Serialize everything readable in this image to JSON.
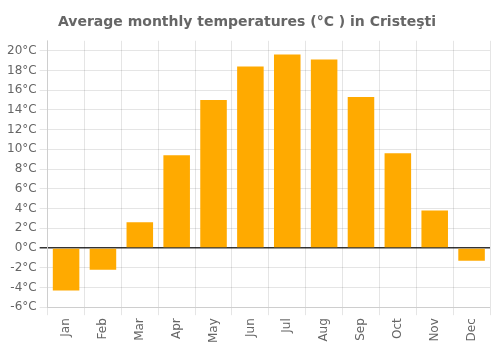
{
  "chart_data": {
    "type": "bar",
    "title": "Average monthly temperatures (°C ) in Cristeşti",
    "categories": [
      "Jan",
      "Feb",
      "Mar",
      "Apr",
      "May",
      "Jun",
      "Jul",
      "Aug",
      "Sep",
      "Oct",
      "Nov",
      "Dec"
    ],
    "values": [
      -4.3,
      -2.2,
      2.6,
      9.4,
      15.0,
      18.4,
      19.6,
      19.1,
      15.3,
      9.6,
      3.8,
      -1.3
    ],
    "color": "#FFAA00",
    "ylim": [
      -6,
      21
    ],
    "yticks": [
      {
        "value": -6,
        "label": "-6°C"
      },
      {
        "value": -4,
        "label": "-4°C"
      },
      {
        "value": -2,
        "label": "-2°C"
      },
      {
        "value": 0,
        "label": "0°C"
      },
      {
        "value": 2,
        "label": "2°C"
      },
      {
        "value": 4,
        "label": "4°C"
      },
      {
        "value": 6,
        "label": "6°C"
      },
      {
        "value": 8,
        "label": "8°C"
      },
      {
        "value": 10,
        "label": "10°C"
      },
      {
        "value": 12,
        "label": "12°C"
      },
      {
        "value": 14,
        "label": "14°C"
      },
      {
        "value": 16,
        "label": "16°C"
      },
      {
        "value": 18,
        "label": "18°C"
      },
      {
        "value": 20,
        "label": "20°C"
      }
    ],
    "grid": true
  }
}
